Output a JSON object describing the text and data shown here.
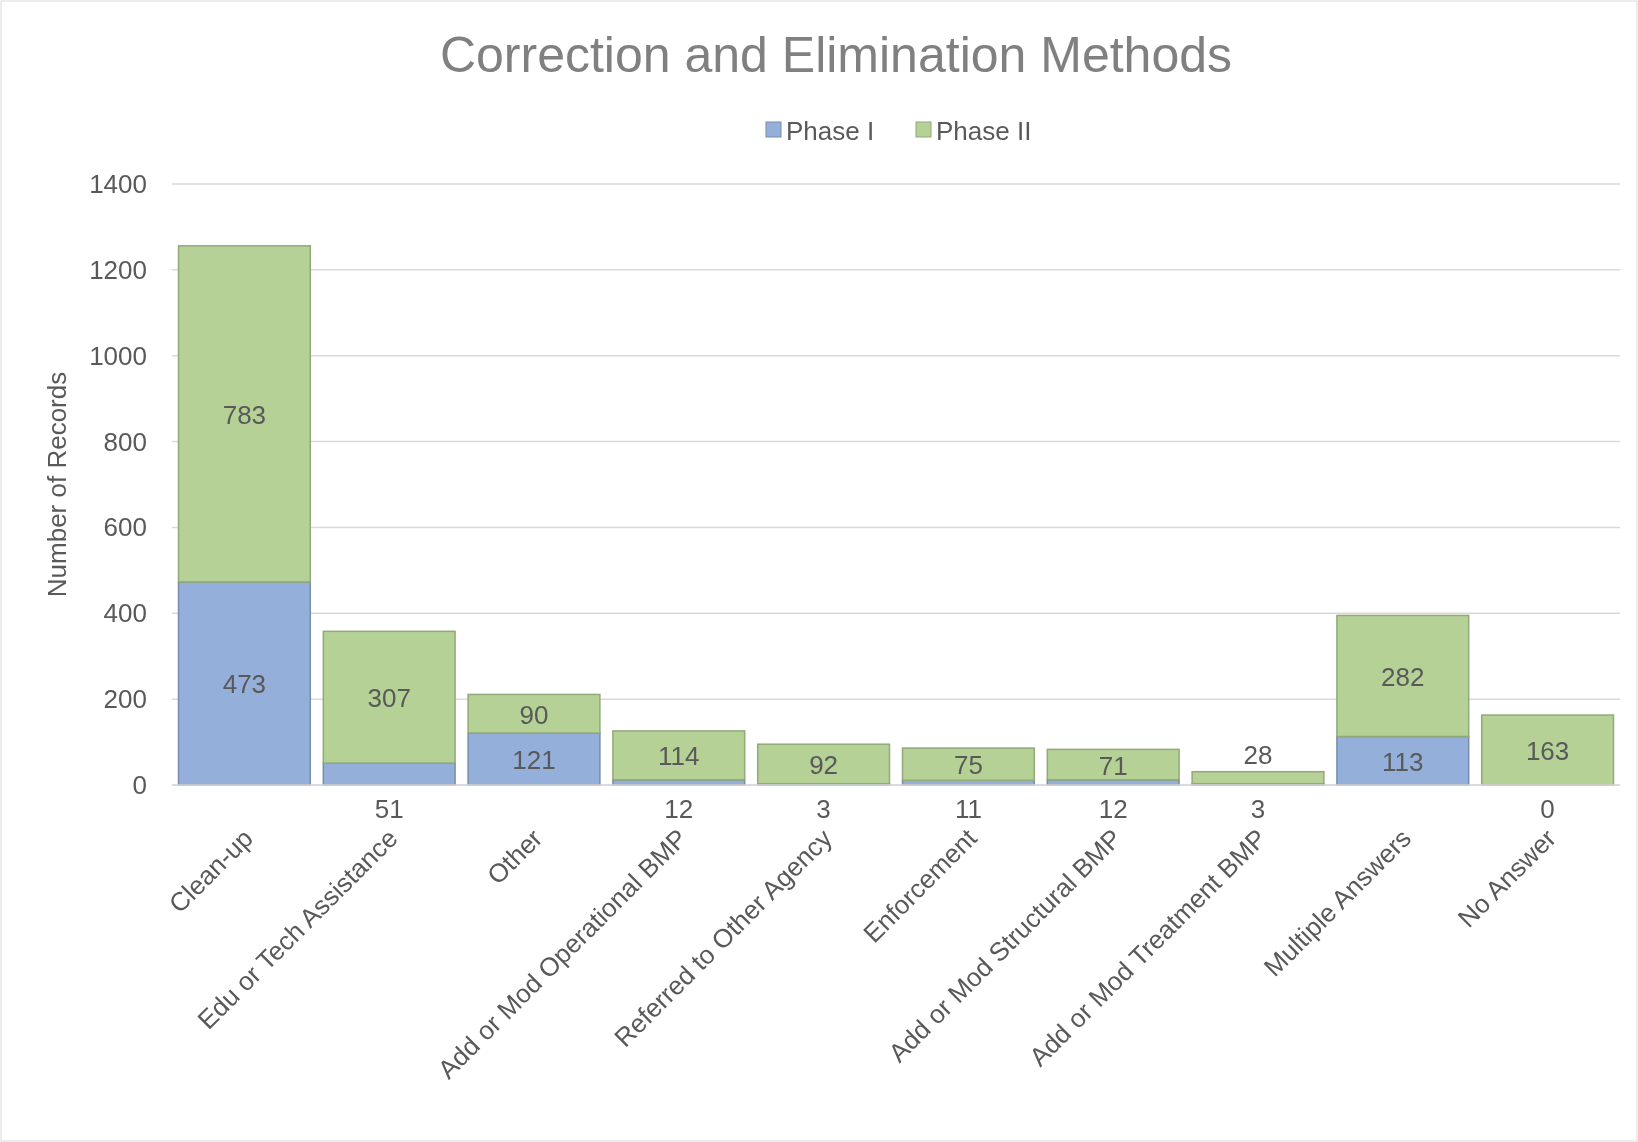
{
  "chart_data": {
    "type": "bar",
    "title": "Correction and Elimination Methods",
    "ylabel": "Number of Records",
    "categories": [
      "Clean-up",
      "Edu or Tech Assistance",
      "Other",
      "Add or Mod Operational BMP",
      "Referred to Other Agency",
      "Enforcement",
      "Add or Mod Structural BMP",
      "Add or Mod Treatment BMP",
      "Multiple Answers",
      "No Answer"
    ],
    "series": [
      {
        "name": "Phase I",
        "color": "#94afd9",
        "values": [
          473,
          51,
          121,
          12,
          3,
          11,
          12,
          3,
          113,
          0
        ]
      },
      {
        "name": "Phase II",
        "color": "#b5d196",
        "values": [
          783,
          307,
          90,
          114,
          92,
          75,
          71,
          28,
          282,
          163
        ]
      }
    ],
    "stacked": true,
    "ylim": [
      0,
      1400
    ],
    "yticks": [
      0,
      200,
      400,
      600,
      800,
      1000,
      1200,
      1400
    ],
    "grid": "y",
    "legend": "top",
    "data_labels": true
  }
}
